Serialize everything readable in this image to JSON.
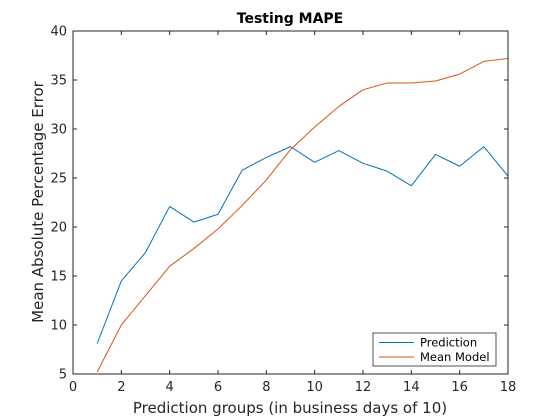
{
  "chart_data": {
    "type": "line",
    "title": "Testing MAPE",
    "xlabel": "Prediction groups (in business days of 10)",
    "ylabel": "Mean Absolute Percentage Error",
    "xlim": [
      0,
      18
    ],
    "ylim": [
      5,
      40
    ],
    "xticks": [
      0,
      2,
      4,
      6,
      8,
      10,
      12,
      14,
      16,
      18
    ],
    "yticks": [
      5,
      10,
      15,
      20,
      25,
      30,
      35,
      40
    ],
    "grid": false,
    "legend_position": "bottom-right",
    "x": [
      1,
      2,
      3,
      4,
      5,
      6,
      7,
      8,
      9,
      10,
      11,
      12,
      13,
      14,
      15,
      16,
      17,
      18
    ],
    "series": [
      {
        "name": "Prediction",
        "color": "#0072bd",
        "values": [
          8.1,
          14.5,
          17.4,
          22.1,
          20.5,
          21.3,
          25.8,
          27.1,
          28.2,
          26.6,
          27.8,
          26.5,
          25.7,
          24.2,
          27.4,
          26.2,
          28.2,
          25.2
        ]
      },
      {
        "name": "Mean Model",
        "color": "#d95319",
        "values": [
          5.2,
          10.0,
          13.0,
          16.0,
          17.8,
          19.8,
          22.2,
          24.8,
          27.9,
          30.2,
          32.3,
          34.0,
          34.7,
          34.7,
          34.9,
          35.6,
          36.9,
          37.2
        ]
      }
    ]
  }
}
